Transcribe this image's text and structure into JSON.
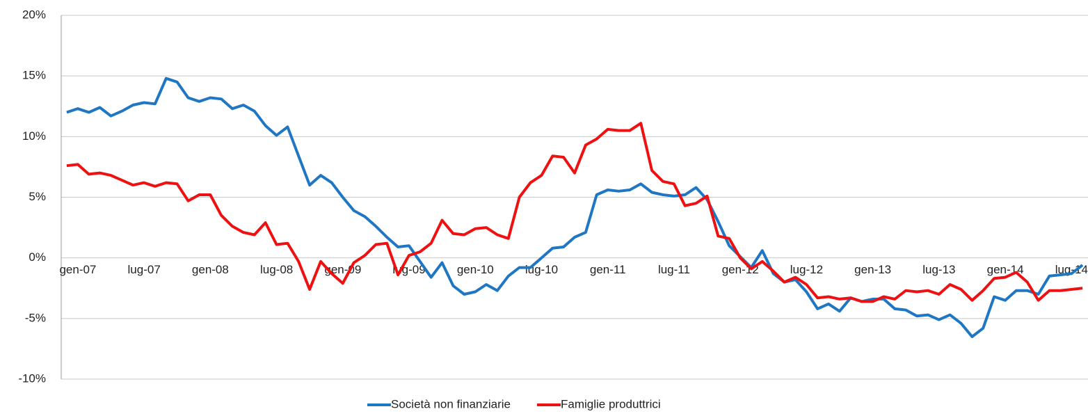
{
  "chart_data": {
    "type": "line",
    "categories": [
      "gen-07",
      null,
      null,
      null,
      null,
      null,
      "lug-07",
      null,
      null,
      null,
      null,
      null,
      "gen-08",
      null,
      null,
      null,
      null,
      null,
      "lug-08",
      null,
      null,
      null,
      null,
      null,
      "gen-09",
      null,
      null,
      null,
      null,
      null,
      "lug-09",
      null,
      null,
      null,
      null,
      null,
      "gen-10",
      null,
      null,
      null,
      null,
      null,
      "lug-10",
      null,
      null,
      null,
      null,
      null,
      "gen-11",
      null,
      null,
      null,
      null,
      null,
      "lug-11",
      null,
      null,
      null,
      null,
      null,
      "gen-12",
      null,
      null,
      null,
      null,
      null,
      "lug-12",
      null,
      null,
      null,
      null,
      null,
      "gen-13",
      null,
      null,
      null,
      null,
      null,
      "lug-13",
      null,
      null,
      null,
      null,
      null,
      "gen-14",
      null,
      null,
      null,
      null,
      null,
      "lug-14",
      null,
      null
    ],
    "series": [
      {
        "name": "Società non finanziarie",
        "color": "#1f77c4",
        "values": [
          12.0,
          12.3,
          12.0,
          12.4,
          11.7,
          12.1,
          12.6,
          12.8,
          12.7,
          14.8,
          14.5,
          13.2,
          12.9,
          13.2,
          13.1,
          12.3,
          12.6,
          12.1,
          10.9,
          10.1,
          10.8,
          8.4,
          6.0,
          6.8,
          6.2,
          5.0,
          3.9,
          3.4,
          2.6,
          1.7,
          0.9,
          1.0,
          -0.3,
          -1.6,
          -0.4,
          -2.3,
          -3.0,
          -2.8,
          -2.2,
          -2.7,
          -1.5,
          -0.8,
          -0.8,
          0.0,
          0.8,
          0.9,
          1.7,
          2.1,
          5.2,
          5.6,
          5.5,
          5.6,
          6.1,
          5.4,
          5.2,
          5.1,
          5.2,
          5.8,
          4.8,
          3.0,
          1.0,
          0.1,
          -0.8,
          0.6,
          -1.3,
          -2.0,
          -1.8,
          -2.8,
          -4.2,
          -3.8,
          -4.4,
          -3.3,
          -3.6,
          -3.4,
          -3.4,
          -4.2,
          -4.3,
          -4.8,
          -4.7,
          -5.1,
          -4.7,
          -5.4,
          -6.5,
          -5.8,
          -3.2,
          -3.5,
          -2.7,
          -2.7,
          -3.0,
          -1.5,
          -1.4,
          -1.3,
          -0.6
        ]
      },
      {
        "name": "Famiglie produttrici",
        "color": "#ee1111",
        "values": [
          7.6,
          7.7,
          6.9,
          7.0,
          6.8,
          6.4,
          6.0,
          6.2,
          5.9,
          6.2,
          6.1,
          4.7,
          5.2,
          5.2,
          3.5,
          2.6,
          2.1,
          1.9,
          2.9,
          1.1,
          1.2,
          -0.3,
          -2.6,
          -0.3,
          -1.3,
          -2.1,
          -0.4,
          0.2,
          1.1,
          1.2,
          -1.4,
          0.2,
          0.5,
          1.2,
          3.1,
          2.0,
          1.9,
          2.4,
          2.5,
          1.9,
          1.6,
          5.0,
          6.2,
          6.8,
          8.4,
          8.3,
          7.0,
          9.3,
          9.8,
          10.6,
          10.5,
          10.5,
          11.1,
          7.2,
          6.3,
          6.1,
          4.3,
          4.5,
          5.1,
          1.8,
          1.6,
          0.0,
          -0.9,
          -0.3,
          -1.1,
          -2.0,
          -1.6,
          -2.2,
          -3.3,
          -3.2,
          -3.4,
          -3.3,
          -3.6,
          -3.6,
          -3.2,
          -3.4,
          -2.7,
          -2.8,
          -2.7,
          -3.0,
          -2.2,
          -2.6,
          -3.5,
          -2.7,
          -1.7,
          -1.6,
          -1.2,
          -2.0,
          -3.5,
          -2.7,
          -2.7,
          -2.6,
          -2.5
        ]
      }
    ],
    "ylim": [
      -10,
      20
    ],
    "yticks": [
      {
        "value": -10,
        "label": "-10%"
      },
      {
        "value": -5,
        "label": "-5%"
      },
      {
        "value": 0,
        "label": "0%"
      },
      {
        "value": 5,
        "label": "5%"
      },
      {
        "value": 10,
        "label": "10%"
      },
      {
        "value": 15,
        "label": "15%"
      },
      {
        "value": 20,
        "label": "20%"
      }
    ],
    "grid": true,
    "legend": "bottom"
  }
}
